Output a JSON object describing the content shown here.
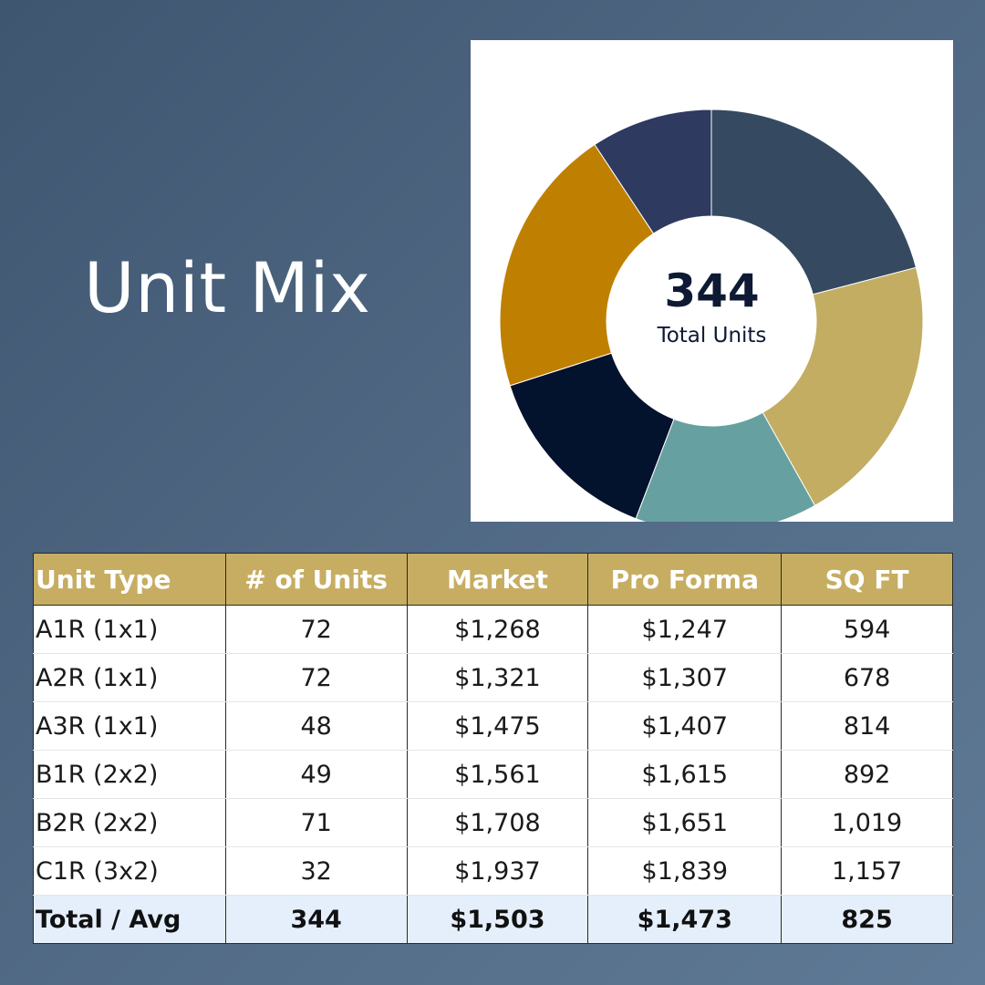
{
  "title": "Unit Mix",
  "chart_data": {
    "type": "pie",
    "categories": [
      "A1R (1x1)",
      "A2R (1x1)",
      "A3R (1x1)",
      "B1R (2x2)",
      "B2R (2x2)",
      "C1R (3x2)"
    ],
    "values": [
      72,
      72,
      48,
      49,
      71,
      32
    ],
    "colors": [
      "#354a60",
      "#c3ad62",
      "#67a0a1",
      "#03122d",
      "#bf8001",
      "#2e3a5f"
    ],
    "donut": true,
    "center_value": "344",
    "center_label": "Total Units"
  },
  "table": {
    "headers": [
      "Unit Type",
      "# of Units",
      "Market",
      "Pro Forma",
      "SQ FT"
    ],
    "rows": [
      [
        "A1R (1x1)",
        "72",
        "$1,268",
        "$1,247",
        "594"
      ],
      [
        "A2R (1x1)",
        "72",
        "$1,321",
        "$1,307",
        "678"
      ],
      [
        "A3R (1x1)",
        "48",
        "$1,475",
        "$1,407",
        "814"
      ],
      [
        "B1R (2x2)",
        "49",
        "$1,561",
        "$1,615",
        "892"
      ],
      [
        "B2R (2x2)",
        "71",
        "$1,708",
        "$1,651",
        "1,019"
      ],
      [
        "C1R (3x2)",
        "32",
        "$1,937",
        "$1,839",
        "1,157"
      ]
    ],
    "total": [
      "Total / Avg",
      "344",
      "$1,503",
      "$1,473",
      "825"
    ]
  },
  "colors": {
    "header_gold": "#c6ad62",
    "total_row_bg": "#e4effb",
    "text_navy": "#0e1a33"
  }
}
